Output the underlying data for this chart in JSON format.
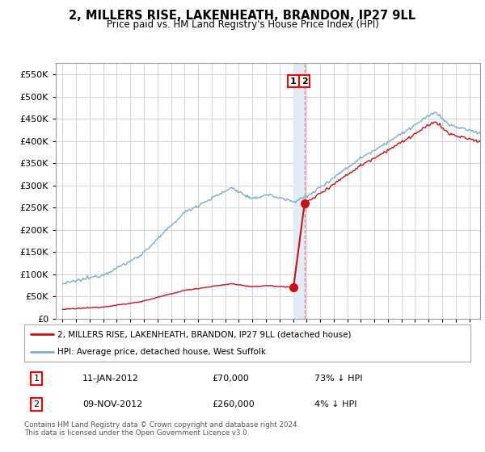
{
  "title": "2, MILLERS RISE, LAKENHEATH, BRANDON, IP27 9LL",
  "subtitle": "Price paid vs. HM Land Registry's House Price Index (HPI)",
  "legend_line1": "2, MILLERS RISE, LAKENHEATH, BRANDON, IP27 9LL (detached house)",
  "legend_line2": "HPI: Average price, detached house, West Suffolk",
  "transaction1_date": "11-JAN-2012",
  "transaction1_price": 70000,
  "transaction1_label": "73% ↓ HPI",
  "transaction1_year": 2012.03,
  "transaction2_date": "09-NOV-2012",
  "transaction2_price": 260000,
  "transaction2_label": "4% ↓ HPI",
  "transaction2_year": 2012.85,
  "footer": "Contains HM Land Registry data © Crown copyright and database right 2024.\nThis data is licensed under the Open Government Licence v3.0.",
  "hpi_color": "#7aadd4",
  "price_color": "#cc1111",
  "bg_color": "#ffffff",
  "grid_color": "#cccccc",
  "highlight_color": "#e0edf8",
  "ylim_max": 575000,
  "yticks": [
    0,
    50000,
    100000,
    150000,
    200000,
    250000,
    300000,
    350000,
    400000,
    450000,
    500000,
    550000
  ],
  "xmin": 1994.5,
  "xmax": 2025.8
}
